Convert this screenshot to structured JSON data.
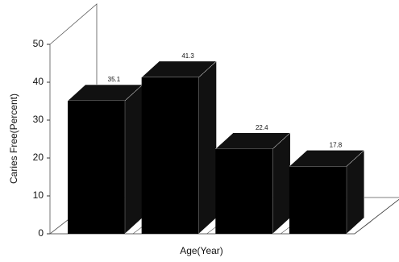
{
  "chart_data": {
    "type": "bar3d",
    "categories": [
      null,
      null,
      null,
      null
    ],
    "values": [
      35.1,
      41.3,
      22.4,
      17.8
    ],
    "color": "#000000",
    "xlabel": "Age(Year)",
    "ylabel": "Caries Free(Percent)",
    "ylim": [
      0,
      50
    ],
    "yticks": [
      0,
      10,
      20,
      30,
      40,
      50
    ]
  }
}
